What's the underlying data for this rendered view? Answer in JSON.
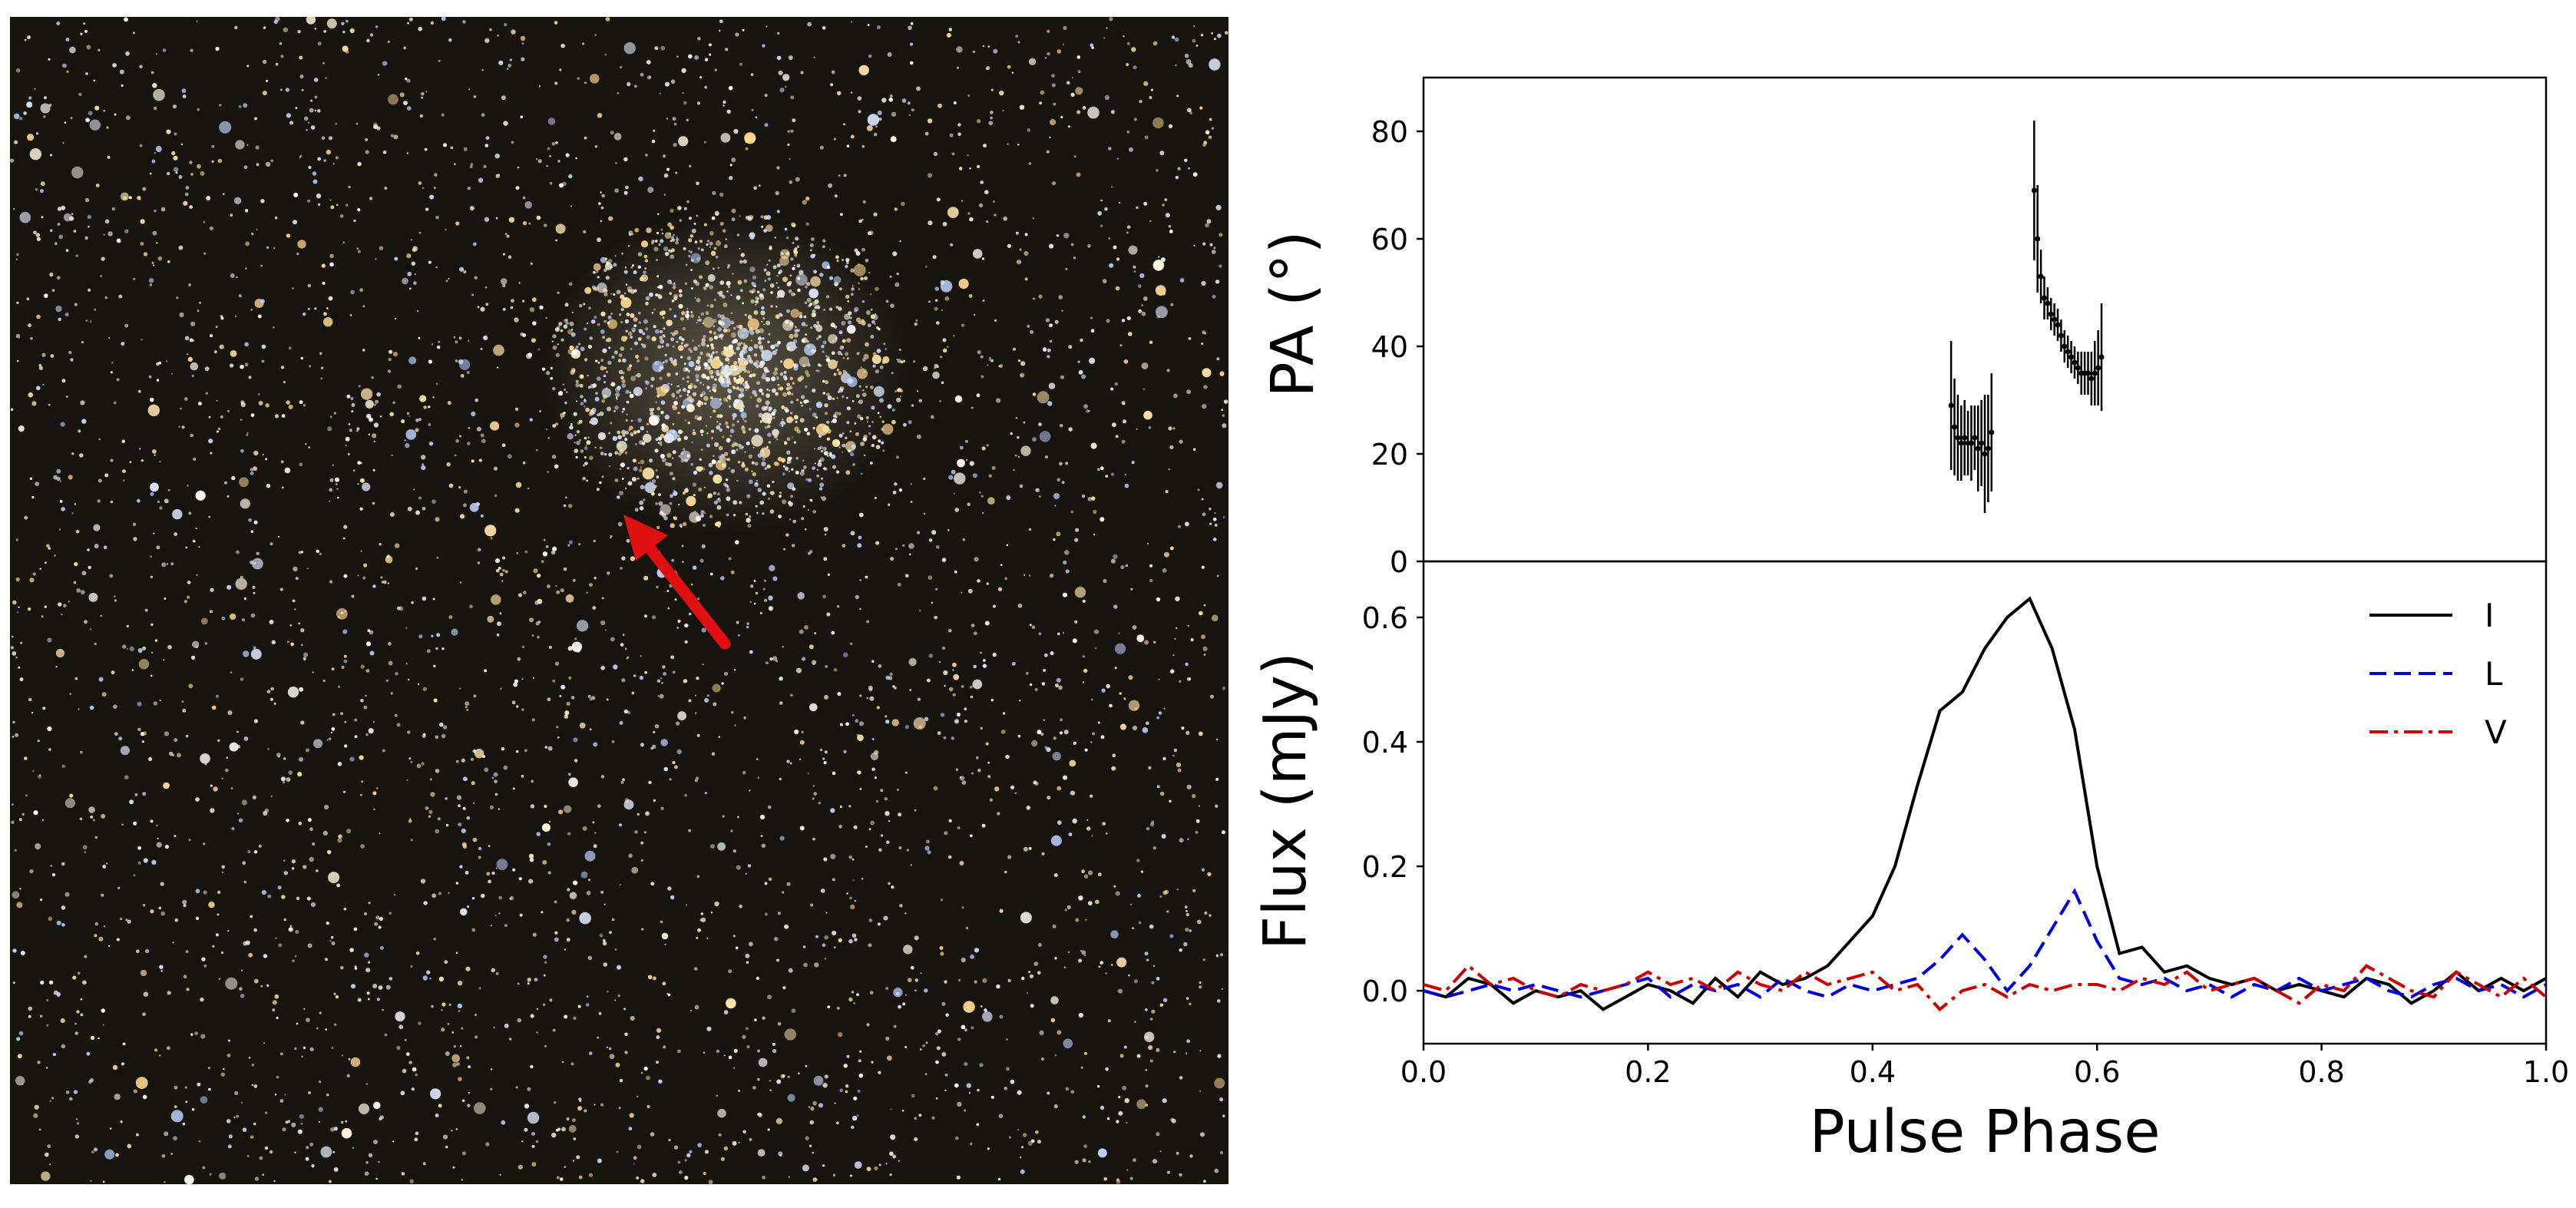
{
  "chart_data": [
    {
      "type": "errorbar",
      "ylabel": "PA (°)",
      "xlim": [
        0,
        1
      ],
      "ylim": [
        0,
        90
      ],
      "yticks": [
        0,
        20,
        40,
        60,
        80
      ],
      "color": "#000000",
      "x": [
        0.47,
        0.473,
        0.476,
        0.479,
        0.482,
        0.485,
        0.488,
        0.491,
        0.494,
        0.497,
        0.5,
        0.503,
        0.506,
        0.544,
        0.547,
        0.55,
        0.553,
        0.556,
        0.559,
        0.562,
        0.565,
        0.568,
        0.571,
        0.574,
        0.577,
        0.58,
        0.583,
        0.586,
        0.589,
        0.592,
        0.595,
        0.598,
        0.601,
        0.604
      ],
      "values": [
        29,
        25,
        23,
        22,
        23,
        22,
        22,
        23,
        21,
        22,
        20,
        21,
        24,
        69,
        60,
        53,
        49,
        48,
        46,
        45,
        44,
        42,
        40,
        39,
        38,
        37,
        36,
        35,
        35,
        35,
        34,
        35,
        36,
        38
      ],
      "errors": [
        12,
        9,
        8,
        7,
        7,
        6,
        7,
        6,
        8,
        8,
        11,
        10,
        11,
        13,
        10,
        5,
        4,
        3,
        3,
        3,
        3,
        3,
        3,
        3,
        3,
        3,
        3,
        4,
        4,
        4,
        5,
        6,
        7,
        10
      ]
    },
    {
      "type": "line",
      "xlabel": "Pulse Phase",
      "ylabel": "Flux (mJy)",
      "xlim": [
        0,
        1
      ],
      "ylim": [
        -0.085,
        0.69
      ],
      "xticks": [
        {
          "value": 0,
          "label": "0.0"
        },
        0.2,
        0.4,
        0.6,
        0.8,
        {
          "value": 1,
          "label": "1.0"
        }
      ],
      "yticks": [
        {
          "value": 0,
          "label": "0.0"
        },
        0.2,
        0.4,
        0.6
      ],
      "legend": "upper right",
      "x": [
        0,
        0.02,
        0.04,
        0.06,
        0.08,
        0.1,
        0.12,
        0.14,
        0.16,
        0.18,
        0.2,
        0.22,
        0.24,
        0.26,
        0.28,
        0.3,
        0.32,
        0.34,
        0.36,
        0.38,
        0.4,
        0.42,
        0.44,
        0.46,
        0.48,
        0.5,
        0.52,
        0.54,
        0.56,
        0.58,
        0.6,
        0.62,
        0.64,
        0.66,
        0.68,
        0.7,
        0.72,
        0.74,
        0.76,
        0.78,
        0.8,
        0.82,
        0.84,
        0.86,
        0.88,
        0.9,
        0.92,
        0.94,
        0.96,
        0.98,
        1
      ],
      "series": [
        {
          "name": "I",
          "color": "#000000",
          "linestyle": "solid",
          "values": [
            0,
            -0.01,
            0.02,
            0.01,
            -0.02,
            0,
            -0.01,
            0,
            -0.03,
            -0.01,
            0.01,
            0,
            -0.02,
            0.02,
            -0.01,
            0.03,
            0.01,
            0.02,
            0.04,
            0.08,
            0.12,
            0.2,
            0.33,
            0.45,
            0.48,
            0.55,
            0.6,
            0.63,
            0.55,
            0.42,
            0.2,
            0.06,
            0.07,
            0.03,
            0.04,
            0.02,
            0.01,
            0.02,
            0,
            0.01,
            0,
            -0.01,
            0.02,
            0.01,
            -0.02,
            0,
            0.03,
            0,
            0.02,
            0,
            0.02
          ]
        },
        {
          "name": "L",
          "color": "#0000dd",
          "linestyle": "dashed",
          "values": [
            0,
            -0.01,
            0,
            0.01,
            0,
            0.01,
            0,
            -0.01,
            0,
            0.01,
            0.02,
            -0.01,
            0.01,
            0,
            0.01,
            -0.01,
            0.02,
            0,
            -0.01,
            0.01,
            0,
            0.01,
            0.02,
            0.05,
            0.09,
            0.05,
            0,
            0.04,
            0.1,
            0.16,
            0.08,
            0.02,
            0.01,
            0.02,
            0,
            0.01,
            -0.01,
            0.01,
            0,
            0.02,
            0,
            0.01,
            0.02,
            0,
            -0.01,
            0.01,
            0.02,
            0,
            0.01,
            -0.01,
            0.01
          ]
        },
        {
          "name": "V",
          "color": "#cc0000",
          "linestyle": "dashdot",
          "values": [
            0.01,
            0,
            0.04,
            0.01,
            0.02,
            0,
            -0.01,
            0.01,
            0,
            0.01,
            0.03,
            0.01,
            0.02,
            0,
            0.03,
            0.01,
            0,
            0.03,
            0.01,
            0.02,
            0.03,
            0,
            0.01,
            -0.03,
            0,
            0.01,
            -0.01,
            0.01,
            0,
            0.01,
            0.01,
            0,
            0.02,
            0.01,
            0.03,
            0,
            0.01,
            0.02,
            0,
            -0.02,
            0.01,
            0,
            0.04,
            0.02,
            0,
            -0.01,
            0.03,
            0.01,
            -0.01,
            0.02,
            -0.01
          ]
        }
      ]
    }
  ]
}
